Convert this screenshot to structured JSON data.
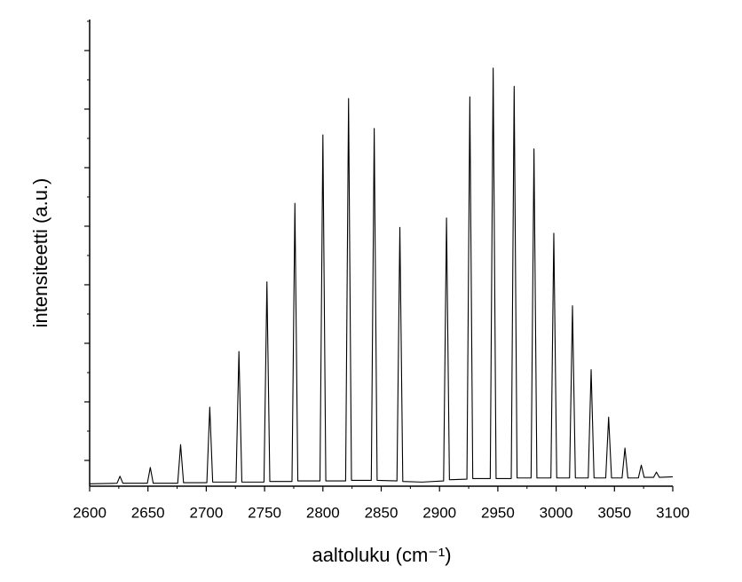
{
  "chart_data": {
    "type": "line",
    "x_label": "aaltoluku (cm⁻¹)",
    "y_label": "intensiteetti (a.u.)",
    "xlim": [
      2600,
      3100
    ],
    "xticks": [
      2600,
      2650,
      2700,
      2750,
      2800,
      2850,
      2900,
      2950,
      3000,
      3050,
      3100
    ],
    "ylim": [
      -0.44,
      7.53
    ],
    "yticks": [
      0,
      1,
      2,
      3,
      4,
      5,
      6,
      7
    ],
    "series": [
      {
        "color": "#000000",
        "x": [
          2600,
          2623.5,
          2626,
          2628.5,
          2649.5,
          2652,
          2654.5,
          2675.5,
          2678,
          2680.5,
          2700.5,
          2703,
          2705.5,
          2725.5,
          2728,
          2730.5,
          2749.5,
          2752,
          2754.5,
          2773.5,
          2776,
          2778.5,
          2797.5,
          2800,
          2802.5,
          2819.5,
          2822,
          2824.5,
          2841.5,
          2844,
          2846.5,
          2863.5,
          2866,
          2868.5,
          2885,
          2903.5,
          2906,
          2908.5,
          2923.5,
          2926,
          2928.5,
          2943.5,
          2946,
          2948.5,
          2961.5,
          2964,
          2966.5,
          2978.5,
          2981,
          2983.5,
          2995.5,
          2998,
          3000.5,
          3011.5,
          3014,
          3016.5,
          3027.5,
          3030,
          3032.5,
          3042.5,
          3045,
          3047.5,
          3056.5,
          3059,
          3061.5,
          3070.5,
          3073,
          3075.5,
          3083.5,
          3086,
          3088.5,
          3100
        ],
        "values": [
          -0.4,
          -0.39,
          -0.27,
          -0.39,
          -0.39,
          -0.12,
          -0.39,
          -0.39,
          0.27,
          -0.38,
          -0.38,
          0.91,
          -0.37,
          -0.37,
          1.86,
          -0.37,
          -0.37,
          3.05,
          -0.36,
          -0.36,
          4.39,
          -0.35,
          -0.35,
          5.56,
          -0.35,
          -0.35,
          6.18,
          -0.34,
          -0.34,
          5.67,
          -0.34,
          -0.35,
          3.98,
          -0.36,
          -0.37,
          -0.35,
          4.14,
          -0.33,
          -0.32,
          6.21,
          -0.31,
          -0.31,
          6.7,
          -0.31,
          -0.31,
          6.39,
          -0.3,
          -0.3,
          5.32,
          -0.3,
          -0.3,
          3.88,
          -0.3,
          -0.3,
          2.64,
          -0.3,
          -0.3,
          1.55,
          -0.3,
          -0.3,
          0.74,
          -0.3,
          -0.3,
          0.21,
          -0.3,
          -0.3,
          -0.08,
          -0.29,
          -0.29,
          -0.2,
          -0.29,
          -0.28
        ]
      }
    ]
  }
}
